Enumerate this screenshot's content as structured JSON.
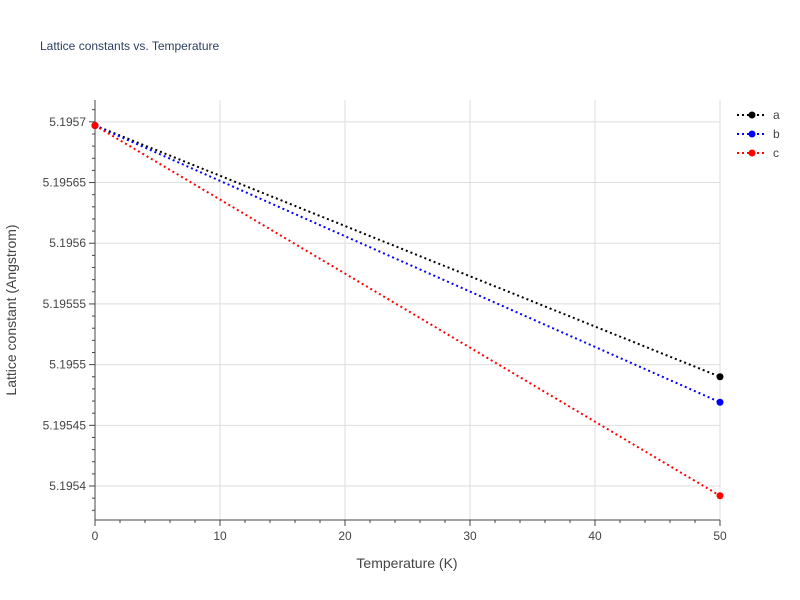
{
  "chart_data": {
    "type": "line",
    "title": "Lattice constants vs. Temperature",
    "xlabel": "Temperature (K)",
    "ylabel": "Lattice constant (Angstrom)",
    "xlim": [
      0,
      50
    ],
    "ylim": [
      5.195372,
      5.195718
    ],
    "x_ticks": [
      0,
      10,
      20,
      30,
      40,
      50
    ],
    "x_tick_labels": [
      "0",
      "10",
      "20",
      "30",
      "40",
      "50"
    ],
    "y_ticks": [
      5.1954,
      5.19545,
      5.1955,
      5.19555,
      5.1956,
      5.19565,
      5.1957
    ],
    "y_tick_labels": [
      "5.1954",
      "5.19545",
      "5.1955",
      "5.19555",
      "5.1956",
      "5.19565",
      "5.1957"
    ],
    "grid": true,
    "legend_position": "top-right",
    "series": [
      {
        "name": "a",
        "color": "#000000",
        "x": [
          0,
          50
        ],
        "y": [
          5.195697,
          5.19549
        ]
      },
      {
        "name": "b",
        "color": "#0000ff",
        "x": [
          0,
          50
        ],
        "y": [
          5.195697,
          5.195469
        ]
      },
      {
        "name": "c",
        "color": "#ff0000",
        "x": [
          0,
          50
        ],
        "y": [
          5.195697,
          5.195392
        ]
      }
    ]
  }
}
